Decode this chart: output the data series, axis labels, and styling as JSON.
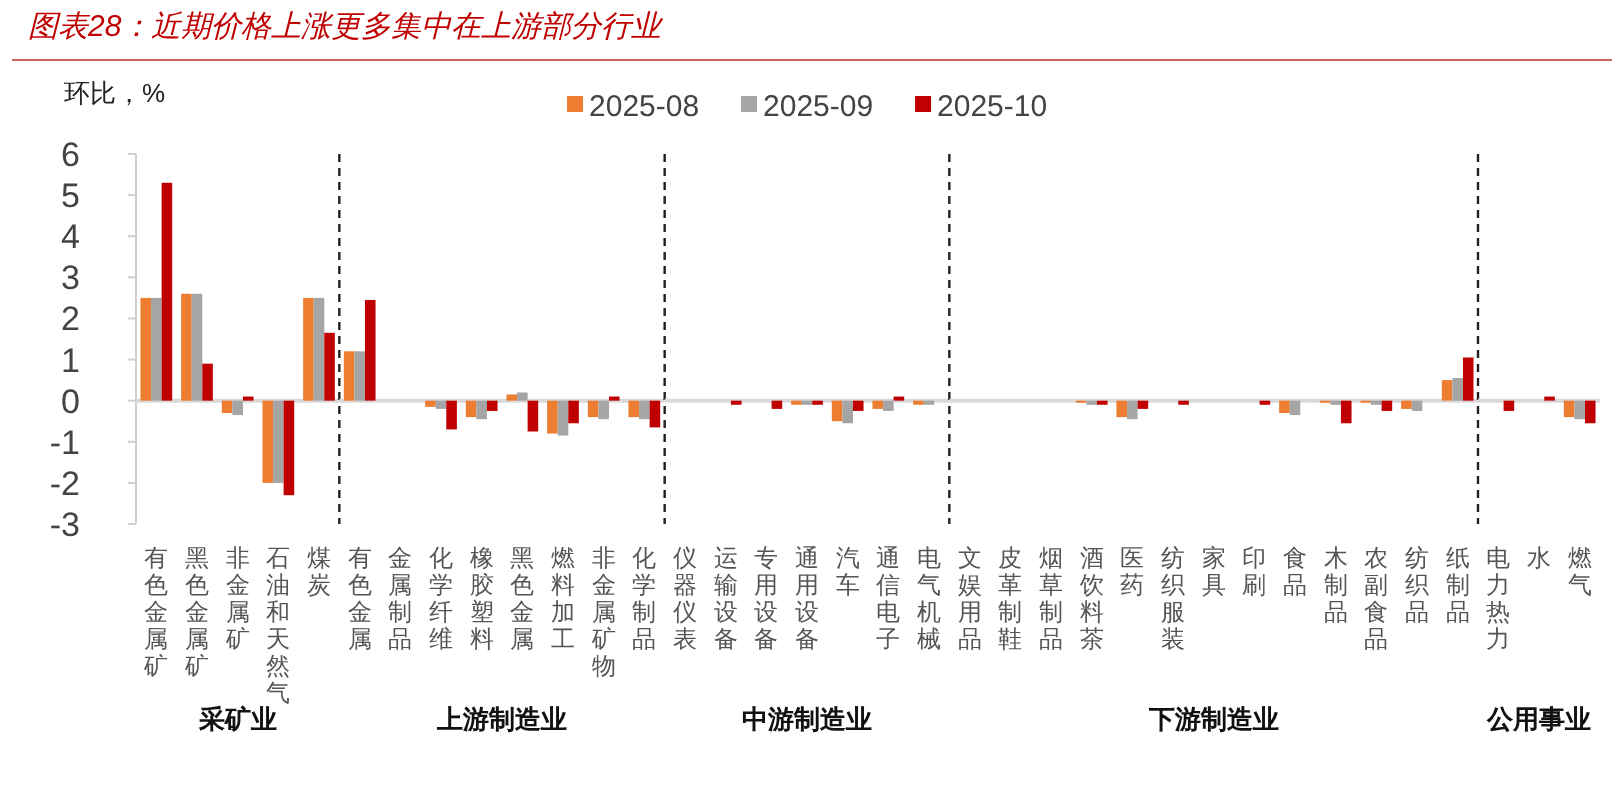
{
  "chart_data": [
    {
      "type": "bar",
      "title": "图表28：近期价格上涨更多集中在上游部分行业",
      "ylabel": "环比，%",
      "xlabel": "采矿业",
      "categories": [
        "有色金属矿",
        "黑色金属矿",
        "非金属矿",
        "石油和天然气",
        "煤炭"
      ],
      "ylim": [
        -3,
        6
      ],
      "yticks": [
        -3,
        -2,
        -1,
        0,
        1,
        2,
        3,
        4,
        5,
        6
      ],
      "series": [
        {
          "color": "#ed7d31",
          "values": [
            2.5,
            2.6,
            -0.3,
            -2.0,
            2.5
          ]
        },
        {
          "color": "#a5a5a5",
          "values": [
            2.5,
            2.6,
            -0.35,
            -2.0,
            2.5
          ]
        },
        {
          "color": "#c00000",
          "values": [
            5.3,
            0.9,
            0.1,
            -2.3,
            1.65
          ]
        }
      ]
    },
    {
      "type": "bar",
      "xlabel": "上游制造业",
      "legend": "top",
      "categories": [
        "有色金属",
        "金属制品",
        "化学纤维",
        "橡胶塑料",
        "黑色金属",
        "燃料加工",
        "非金属矿物",
        "化学制品"
      ],
      "ylim": [
        -3,
        6
      ],
      "tick_labels": "x",
      "series": [
        {
          "name": "2025-08",
          "color": "#ed7d31",
          "values": [
            1.2,
            0,
            -0.15,
            -0.4,
            0.15,
            -0.8,
            -0.4,
            -0.4
          ]
        },
        {
          "name": "2025-09",
          "color": "#a5a5a5",
          "values": [
            1.2,
            0,
            -0.2,
            -0.45,
            0.2,
            -0.85,
            -0.45,
            -0.45
          ]
        },
        {
          "name": "2025-10",
          "color": "#c00000",
          "values": [
            2.45,
            0,
            -0.7,
            -0.25,
            -0.75,
            -0.55,
            0.1,
            -0.65
          ]
        }
      ]
    },
    {
      "type": "bar",
      "xlabel": "中游制造业",
      "categories": [
        "仪器仪表",
        "运输设备",
        "专用设备",
        "通用设备",
        "汽车",
        "通信电子",
        "电气机械"
      ],
      "ylim": [
        -3,
        6
      ],
      "tick_labels": "x",
      "series": [
        {
          "color": "#ed7d31",
          "values": [
            0,
            0,
            0,
            -0.1,
            -0.5,
            -0.2,
            -0.1
          ]
        },
        {
          "color": "#a5a5a5",
          "values": [
            0,
            0,
            0,
            -0.1,
            -0.55,
            -0.25,
            -0.1
          ]
        },
        {
          "color": "#c00000",
          "values": [
            0,
            -0.1,
            -0.2,
            -0.1,
            -0.25,
            0.1,
            0
          ]
        }
      ]
    },
    {
      "type": "bar",
      "xlabel": "下游制造业",
      "categories": [
        "文娱用品",
        "皮革制鞋",
        "烟草制品",
        "酒饮料茶",
        "医药",
        "纺织服装",
        "家具",
        "印刷",
        "食品",
        "木制品",
        "农副食品",
        "纺织品",
        "纸制品"
      ],
      "ylim": [
        -3,
        6
      ],
      "tick_labels": "x",
      "series": [
        {
          "color": "#ed7d31",
          "values": [
            0,
            0,
            0,
            -0.05,
            -0.4,
            0,
            0,
            0,
            -0.3,
            -0.05,
            -0.05,
            -0.2,
            0.5
          ]
        },
        {
          "color": "#a5a5a5",
          "values": [
            0,
            0,
            0,
            -0.1,
            -0.45,
            0,
            0,
            0,
            -0.35,
            -0.1,
            -0.1,
            -0.25,
            0.55
          ]
        },
        {
          "color": "#c00000",
          "values": [
            0,
            0,
            0,
            -0.1,
            -0.2,
            -0.1,
            0,
            -0.1,
            0,
            -0.55,
            -0.25,
            0,
            1.05
          ]
        }
      ]
    },
    {
      "type": "bar",
      "xlabel": "公用事业",
      "categories": [
        "电力热力",
        "水",
        "燃气"
      ],
      "ylim": [
        -3,
        6
      ],
      "tick_labels": "x",
      "series": [
        {
          "color": "#ed7d31",
          "values": [
            0,
            0,
            -0.4
          ]
        },
        {
          "color": "#a5a5a5",
          "values": [
            0,
            0,
            -0.45
          ]
        },
        {
          "color": "#c00000",
          "values": [
            -0.25,
            0.1,
            -0.55
          ]
        }
      ]
    }
  ]
}
